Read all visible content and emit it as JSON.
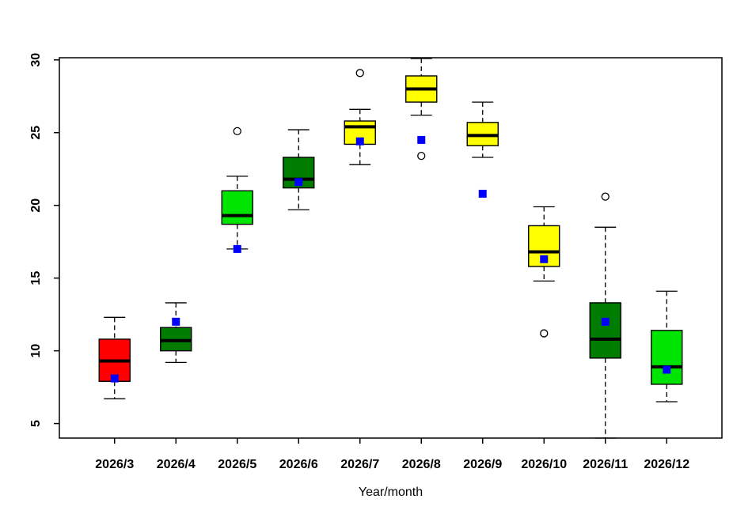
{
  "chart_data": {
    "type": "boxplot",
    "title": "",
    "xlabel": "Year/month",
    "ylabel": "",
    "categories": [
      "2026/3",
      "2026/4",
      "2026/5",
      "2026/6",
      "2026/7",
      "2026/8",
      "2026/9",
      "2026/10",
      "2026/11",
      "2026/12"
    ],
    "yticks": [
      5,
      10,
      15,
      20,
      25,
      30
    ],
    "ylim": [
      4.0,
      30.15
    ],
    "xlim": [
      0.1,
      10.9
    ],
    "grid": false,
    "legend": "none",
    "point_marker": "filled-square",
    "outlier_marker": "open-circle",
    "colors": {
      "red": "#ff0000",
      "dark_green": "#007d00",
      "bright_green": "#00e500",
      "yellow": "#ffff00",
      "point_blue": "#0000ff",
      "axis": "#000000",
      "background": "#ffffff"
    },
    "boxes": [
      {
        "label": "2026/3",
        "color": "#ff0000",
        "whisker_low": 6.7,
        "q1": 7.9,
        "median": 9.3,
        "q3": 10.8,
        "whisker_high": 12.3,
        "outliers": [],
        "point": 8.1
      },
      {
        "label": "2026/4",
        "color": "#007d00",
        "whisker_low": 9.2,
        "q1": 10.0,
        "median": 10.7,
        "q3": 11.6,
        "whisker_high": 13.3,
        "outliers": [],
        "point": 12.0
      },
      {
        "label": "2026/5",
        "color": "#00e500",
        "whisker_low": 17.0,
        "q1": 18.7,
        "median": 19.3,
        "q3": 21.0,
        "whisker_high": 22.0,
        "outliers": [
          25.1
        ],
        "point": 17.0
      },
      {
        "label": "2026/6",
        "color": "#007d00",
        "whisker_low": 19.7,
        "q1": 21.2,
        "median": 21.8,
        "q3": 23.3,
        "whisker_high": 25.2,
        "outliers": [],
        "point": 21.6
      },
      {
        "label": "2026/7",
        "color": "#ffff00",
        "whisker_low": 22.8,
        "q1": 24.2,
        "median": 25.4,
        "q3": 25.8,
        "whisker_high": 26.6,
        "outliers": [
          29.1
        ],
        "point": 24.4
      },
      {
        "label": "2026/8",
        "color": "#ffff00",
        "whisker_low": 26.2,
        "q1": 27.1,
        "median": 28.0,
        "q3": 28.9,
        "whisker_high": 30.1,
        "outliers": [
          23.4
        ],
        "point": 24.5
      },
      {
        "label": "2026/9",
        "color": "#ffff00",
        "whisker_low": 23.3,
        "q1": 24.1,
        "median": 24.8,
        "q3": 25.7,
        "whisker_high": 27.1,
        "outliers": [],
        "point": 20.8
      },
      {
        "label": "2026/10",
        "color": "#ffff00",
        "whisker_low": 14.8,
        "q1": 15.8,
        "median": 16.8,
        "q3": 18.6,
        "whisker_high": 19.9,
        "outliers": [
          11.2
        ],
        "point": 16.3
      },
      {
        "label": "2026/11",
        "color": "#007d00",
        "whisker_low": 4.0,
        "q1": 9.5,
        "median": 10.8,
        "q3": 13.3,
        "whisker_high": 18.5,
        "outliers": [
          20.6
        ],
        "point": 12.0
      },
      {
        "label": "2026/12",
        "color": "#00e500",
        "whisker_low": 6.5,
        "q1": 7.7,
        "median": 8.9,
        "q3": 11.4,
        "whisker_high": 14.1,
        "outliers": [],
        "point": 8.7
      }
    ]
  }
}
